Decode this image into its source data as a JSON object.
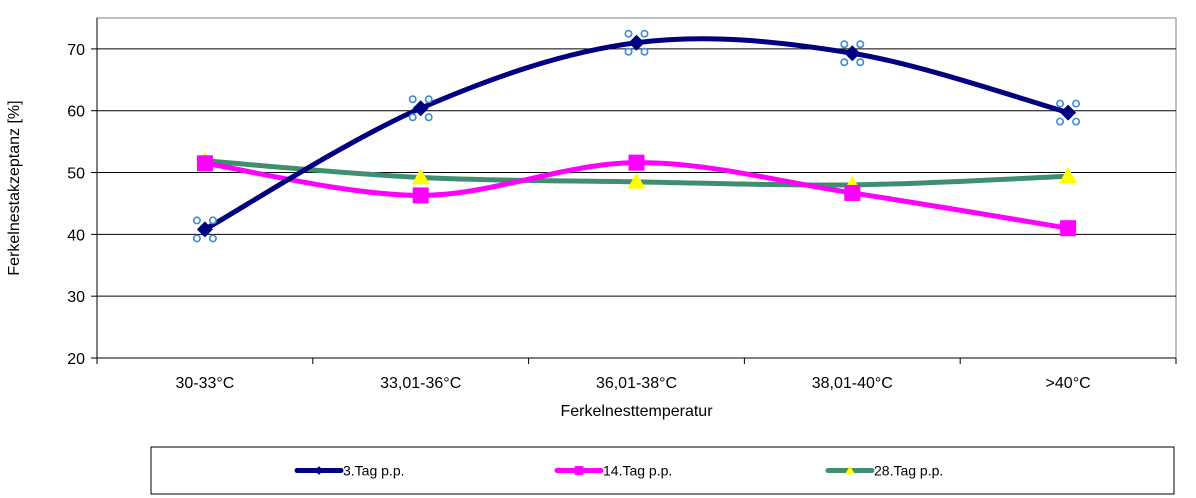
{
  "chart_data": {
    "type": "line",
    "categories": [
      "30-33°C",
      "33,01-36°C",
      "36,01-38°C",
      "38,01-40°C",
      ">40°C"
    ],
    "series": [
      {
        "name": "3.Tag p.p.",
        "values": [
          40.8,
          60.4,
          71.0,
          69.3,
          59.7
        ],
        "color": "#000080",
        "marker": "diamond",
        "selected": true
      },
      {
        "name": "14.Tag p.p.",
        "values": [
          51.5,
          46.3,
          51.6,
          46.7,
          41.0
        ],
        "color": "#FF00FF",
        "marker": "square"
      },
      {
        "name": "28.Tag p.p.",
        "values": [
          51.9,
          49.2,
          48.5,
          48.0,
          49.4
        ],
        "color": "#3F8F6F",
        "marker": "triangle",
        "marker_color": "#FFFF00"
      }
    ],
    "title": "",
    "xlabel": "Ferkelnesttemperatur",
    "ylabel": "Ferkelnestakzeptanz [%]",
    "ylim": [
      20,
      75
    ],
    "yticks": [
      20,
      30,
      40,
      50,
      60,
      70
    ],
    "grid": true,
    "smooth": true,
    "legend_position": "bottom"
  }
}
